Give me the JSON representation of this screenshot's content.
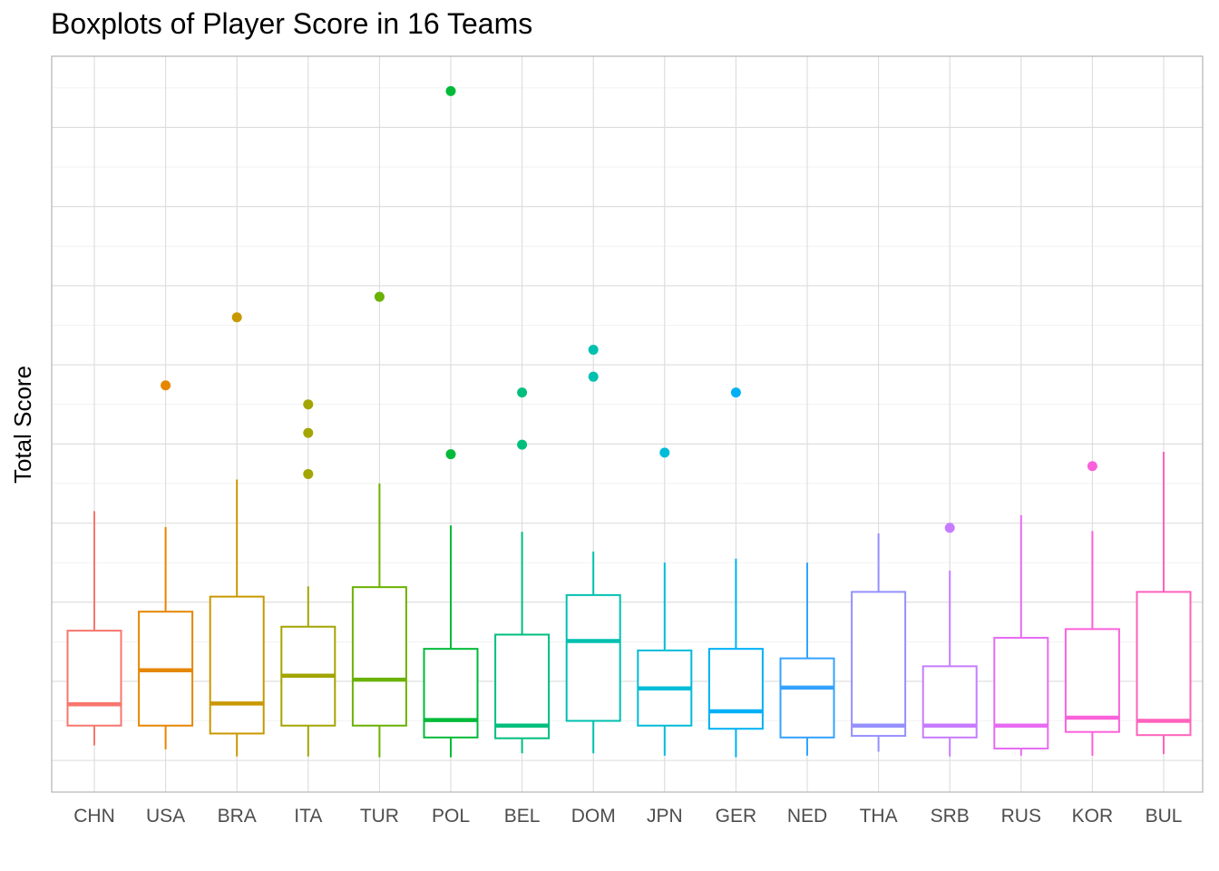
{
  "chart_data": {
    "type": "boxplot",
    "title": "Boxplots of Player Score in 16 Teams",
    "xlabel": "",
    "ylabel": "Total Score",
    "y_tick_labels_shown": false,
    "ylim": [
      -0.4,
      8.9
    ],
    "grid": true,
    "legend": "none",
    "categories": [
      "CHN",
      "USA",
      "BRA",
      "ITA",
      "TUR",
      "POL",
      "BEL",
      "DOM",
      "JPN",
      "GER",
      "NED",
      "THA",
      "SRB",
      "RUS",
      "KOR",
      "BUL"
    ],
    "series": [
      {
        "team": "CHN",
        "color": "#F8766D",
        "whisker_low": 0.19,
        "q1": 0.44,
        "median": 0.71,
        "q3": 1.64,
        "whisker_high": 3.15,
        "outliers": []
      },
      {
        "team": "USA",
        "color": "#E58700",
        "whisker_low": 0.14,
        "q1": 0.44,
        "median": 1.14,
        "q3": 1.88,
        "whisker_high": 2.95,
        "outliers": [
          4.74
        ]
      },
      {
        "team": "BRA",
        "color": "#C99800",
        "whisker_low": 0.05,
        "q1": 0.34,
        "median": 0.72,
        "q3": 2.07,
        "whisker_high": 3.55,
        "outliers": [
          5.6
        ]
      },
      {
        "team": "ITA",
        "color": "#A3A500",
        "whisker_low": 0.05,
        "q1": 0.44,
        "median": 1.07,
        "q3": 1.69,
        "whisker_high": 2.2,
        "outliers": [
          4.5,
          4.14,
          3.62
        ]
      },
      {
        "team": "TUR",
        "color": "#6BB100",
        "whisker_low": 0.04,
        "q1": 0.44,
        "median": 1.02,
        "q3": 2.19,
        "whisker_high": 3.5,
        "outliers": [
          5.86
        ]
      },
      {
        "team": "POL",
        "color": "#00BA38",
        "whisker_low": 0.04,
        "q1": 0.29,
        "median": 0.51,
        "q3": 1.41,
        "whisker_high": 2.97,
        "outliers": [
          8.46,
          3.87
        ]
      },
      {
        "team": "BEL",
        "color": "#00BF7D",
        "whisker_low": 0.09,
        "q1": 0.28,
        "median": 0.44,
        "q3": 1.59,
        "whisker_high": 2.89,
        "outliers": [
          4.65,
          3.99
        ]
      },
      {
        "team": "DOM",
        "color": "#00C0AF",
        "whisker_low": 0.09,
        "q1": 0.5,
        "median": 1.51,
        "q3": 2.09,
        "whisker_high": 2.64,
        "outliers": [
          5.19,
          4.85
        ]
      },
      {
        "team": "JPN",
        "color": "#00BCD8",
        "whisker_low": 0.06,
        "q1": 0.44,
        "median": 0.91,
        "q3": 1.39,
        "whisker_high": 2.5,
        "outliers": [
          3.89
        ]
      },
      {
        "team": "GER",
        "color": "#00B0F6",
        "whisker_low": 0.04,
        "q1": 0.4,
        "median": 0.62,
        "q3": 1.41,
        "whisker_high": 2.55,
        "outliers": [
          4.65
        ]
      },
      {
        "team": "NED",
        "color": "#35A2FF",
        "whisker_low": 0.06,
        "q1": 0.29,
        "median": 0.92,
        "q3": 1.29,
        "whisker_high": 2.5,
        "outliers": []
      },
      {
        "team": "THA",
        "color": "#9590FF",
        "whisker_low": 0.11,
        "q1": 0.31,
        "median": 0.44,
        "q3": 2.13,
        "whisker_high": 2.87,
        "outliers": []
      },
      {
        "team": "SRB",
        "color": "#C77CFF",
        "whisker_low": 0.05,
        "q1": 0.29,
        "median": 0.44,
        "q3": 1.19,
        "whisker_high": 2.4,
        "outliers": [
          2.94
        ]
      },
      {
        "team": "RUS",
        "color": "#E76BF3",
        "whisker_low": 0.06,
        "q1": 0.15,
        "median": 0.44,
        "q3": 1.55,
        "whisker_high": 3.1,
        "outliers": []
      },
      {
        "team": "KOR",
        "color": "#FA62DB",
        "whisker_low": 0.06,
        "q1": 0.36,
        "median": 0.54,
        "q3": 1.66,
        "whisker_high": 2.9,
        "outliers": [
          3.72
        ]
      },
      {
        "team": "BUL",
        "color": "#FF62BC",
        "whisker_low": 0.08,
        "q1": 0.32,
        "median": 0.5,
        "q3": 2.13,
        "whisker_high": 3.9,
        "outliers": []
      }
    ]
  }
}
